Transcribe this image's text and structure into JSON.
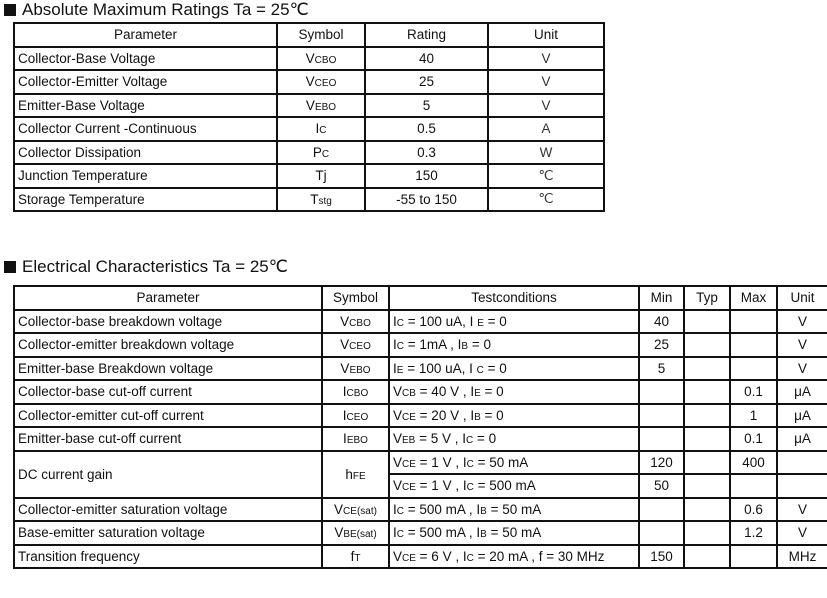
{
  "abs": {
    "title": "Absolute Maximum Ratings Ta = 25℃",
    "headers": [
      "Parameter",
      "Symbol",
      "Rating",
      "Unit"
    ],
    "rows": [
      {
        "param": "Collector-Base Voltage",
        "sym": "V",
        "sub": "CBO",
        "rating": "40",
        "unit": "V"
      },
      {
        "param": "Collector-Emitter Voltage",
        "sym": "V",
        "sub": "CEO",
        "rating": "25",
        "unit": "V"
      },
      {
        "param": "Emitter-Base Voltage",
        "sym": "V",
        "sub": "EBO",
        "rating": "5",
        "unit": "V"
      },
      {
        "param": "Collector Current -Continuous",
        "sym": "I",
        "sub": "C",
        "rating": "0.5",
        "unit": "A"
      },
      {
        "param": "Collector Dissipation",
        "sym": "P",
        "sub": "C",
        "rating": "0.3",
        "unit": "W"
      },
      {
        "param": "Junction Temperature",
        "sym": "Tj",
        "sub": "",
        "rating": "150",
        "unit": "℃"
      },
      {
        "param": "Storage Temperature",
        "sym": "T",
        "sub": "stg",
        "rating": "-55 to 150",
        "unit": "℃"
      }
    ]
  },
  "elec": {
    "title": "Electrical Characteristics Ta = 25℃",
    "headers": [
      "Parameter",
      "Symbol",
      "Testconditions",
      "Min",
      "Typ",
      "Max",
      "Unit"
    ],
    "rows": [
      {
        "param": "Collector-base breakdown voltage",
        "sym": "V",
        "sub": "CBO",
        "cond": [
          [
            "I",
            0
          ],
          [
            "C",
            1
          ],
          [
            " = 100 uA, I ",
            0
          ],
          [
            "E",
            1
          ],
          [
            " = 0",
            0
          ]
        ],
        "min": "40",
        "typ": "",
        "max": "",
        "unit": "V"
      },
      {
        "param": "Collector-emitter breakdown voltage",
        "sym": "V",
        "sub": "CEO",
        "cond": [
          [
            "I",
            0
          ],
          [
            "C",
            1
          ],
          [
            " = 1mA , I",
            0
          ],
          [
            "B",
            1
          ],
          [
            " = 0",
            0
          ]
        ],
        "min": "25",
        "typ": "",
        "max": "",
        "unit": "V"
      },
      {
        "param": "Emitter-base Breakdown voltage",
        "sym": "V",
        "sub": "EBO",
        "cond": [
          [
            "I",
            0
          ],
          [
            "E",
            1
          ],
          [
            " = 100 uA, I ",
            0
          ],
          [
            "C",
            1
          ],
          [
            " = 0",
            0
          ]
        ],
        "min": "5",
        "typ": "",
        "max": "",
        "unit": "V"
      },
      {
        "param": "Collector-base cut-off current",
        "sym": "I",
        "sub": "CBO",
        "cond": [
          [
            "V",
            0
          ],
          [
            "CB",
            1
          ],
          [
            " = 40 V , I",
            0
          ],
          [
            "E",
            1
          ],
          [
            " = 0",
            0
          ]
        ],
        "min": "",
        "typ": "",
        "max": "0.1",
        "unit": "μA"
      },
      {
        "param": "Collector-emitter cut-off current",
        "sym": "I",
        "sub": "CEO",
        "cond": [
          [
            "V",
            0
          ],
          [
            "CE",
            1
          ],
          [
            " = 20 V , I",
            0
          ],
          [
            "B",
            1
          ],
          [
            " = 0",
            0
          ]
        ],
        "min": "",
        "typ": "",
        "max": "1",
        "unit": "μA"
      },
      {
        "param": "Emitter-base cut-off current",
        "sym": "I",
        "sub": "EBO",
        "cond": [
          [
            "V",
            0
          ],
          [
            "EB",
            1
          ],
          [
            " = 5 V , I",
            0
          ],
          [
            "C",
            1
          ],
          [
            " = 0",
            0
          ]
        ],
        "min": "",
        "typ": "",
        "max": "0.1",
        "unit": "μA"
      },
      {
        "param": "DC current gain",
        "sym": "h",
        "sub": "FE",
        "cond": [
          [
            "V",
            0
          ],
          [
            "CE",
            1
          ],
          [
            " = 1 V , I",
            0
          ],
          [
            "C",
            1
          ],
          [
            " = 50 mA",
            0
          ]
        ],
        "min": "120",
        "typ": "",
        "max": "400",
        "unit": "",
        "cond2": [
          [
            "V",
            0
          ],
          [
            "CE",
            1
          ],
          [
            " = 1 V , I",
            0
          ],
          [
            "C",
            1
          ],
          [
            " = 500 mA",
            0
          ]
        ],
        "min2": "50",
        "typ2": "",
        "max2": "",
        "unit2": ""
      },
      {
        "param": "Collector-emitter saturation voltage",
        "sym": "V",
        "sub": "CE(sat)",
        "cond": [
          [
            "I",
            0
          ],
          [
            "C",
            1
          ],
          [
            " = 500 mA , I",
            0
          ],
          [
            "B",
            1
          ],
          [
            " = 50 mA",
            0
          ]
        ],
        "min": "",
        "typ": "",
        "max": "0.6",
        "unit": "V"
      },
      {
        "param": "Base-emitter saturation voltage",
        "sym": "V",
        "sub": "BE(sat)",
        "cond": [
          [
            "I",
            0
          ],
          [
            "C",
            1
          ],
          [
            " = 500 mA , I",
            0
          ],
          [
            "B",
            1
          ],
          [
            " = 50 mA",
            0
          ]
        ],
        "min": "",
        "typ": "",
        "max": "1.2",
        "unit": "V"
      },
      {
        "param": "Transition frequency",
        "sym": "f",
        "sub": "T",
        "cond": [
          [
            "V",
            0
          ],
          [
            "CE",
            1
          ],
          [
            " = 6 V , I",
            0
          ],
          [
            "C",
            1
          ],
          [
            " = 20 mA , f = 30 MHz",
            0
          ]
        ],
        "min": "150",
        "typ": "",
        "max": "",
        "unit": "MHz"
      }
    ]
  }
}
